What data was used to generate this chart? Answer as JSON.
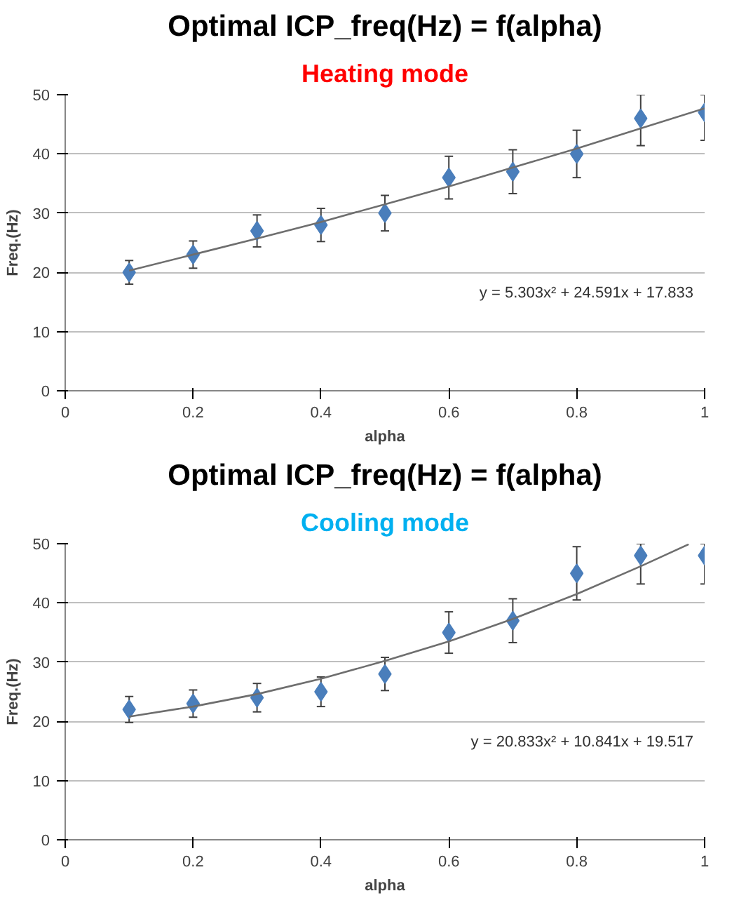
{
  "chart_data": [
    {
      "type": "scatter",
      "title": "Optimal ICP_freq(Hz) = f(alpha)",
      "subtitle": "Heating mode",
      "xlabel": "alpha",
      "ylabel": "Freq.(Hz)",
      "xlim": [
        0,
        1
      ],
      "xticks": [
        0,
        0.2,
        0.4,
        0.6,
        0.8,
        1
      ],
      "ylim": [
        0,
        50
      ],
      "yticks": [
        0,
        10,
        20,
        30,
        40,
        50
      ],
      "grid": "y",
      "annotations": [
        "y = 5.303x² + 24.591x + 17.833"
      ],
      "series": [
        {
          "marker": "diamond",
          "color": "#4a7ebb",
          "x": [
            0.1,
            0.2,
            0.3,
            0.4,
            0.5,
            0.6,
            0.7,
            0.8,
            0.9,
            1.0
          ],
          "values": [
            20,
            23,
            27,
            28,
            30,
            36,
            37,
            40,
            46,
            47
          ],
          "errors": [
            2,
            2.3,
            2.7,
            2.8,
            3,
            3.6,
            3.7,
            4,
            [
              41.4,
              50
            ],
            [
              42.3,
              50
            ]
          ]
        },
        {
          "type": "line",
          "color": "#6e6e6e",
          "x": [
            0.1,
            0.2,
            0.3,
            0.4,
            0.5,
            0.6,
            0.7,
            0.8,
            0.9,
            1.0
          ],
          "values": [
            20.3,
            23.0,
            25.7,
            28.5,
            31.5,
            34.5,
            37.7,
            40.9,
            44.3,
            47.7
          ]
        }
      ]
    },
    {
      "type": "scatter",
      "title": "Optimal ICP_freq(Hz) = f(alpha)",
      "subtitle": "Cooling mode",
      "xlabel": "alpha",
      "ylabel": "Freq.(Hz)",
      "xlim": [
        0,
        1
      ],
      "xticks": [
        0,
        0.2,
        0.4,
        0.6,
        0.8,
        1
      ],
      "ylim": [
        0,
        50
      ],
      "yticks": [
        0,
        10,
        20,
        30,
        40,
        50
      ],
      "grid": "y",
      "annotations": [
        "y = 20.833x² + 10.841x + 19.517"
      ],
      "series": [
        {
          "marker": "diamond",
          "color": "#4a7ebb",
          "x": [
            0.1,
            0.2,
            0.3,
            0.4,
            0.5,
            0.6,
            0.7,
            0.8,
            0.9,
            1.0
          ],
          "values": [
            22,
            23,
            24,
            25,
            28,
            35,
            37,
            45,
            48,
            48
          ],
          "errors": [
            2.2,
            2.3,
            2.4,
            2.5,
            2.8,
            3.5,
            3.7,
            4.5,
            [
              43.2,
              50
            ],
            [
              43.2,
              50
            ]
          ]
        },
        {
          "type": "line",
          "color": "#6e6e6e",
          "x": [
            0.1,
            0.2,
            0.3,
            0.4,
            0.5,
            0.6,
            0.7,
            0.8,
            0.9,
            0.975
          ],
          "values": [
            20.8,
            22.5,
            24.6,
            27.2,
            30.2,
            33.5,
            37.3,
            41.5,
            46.2,
            49.9
          ]
        }
      ]
    }
  ]
}
